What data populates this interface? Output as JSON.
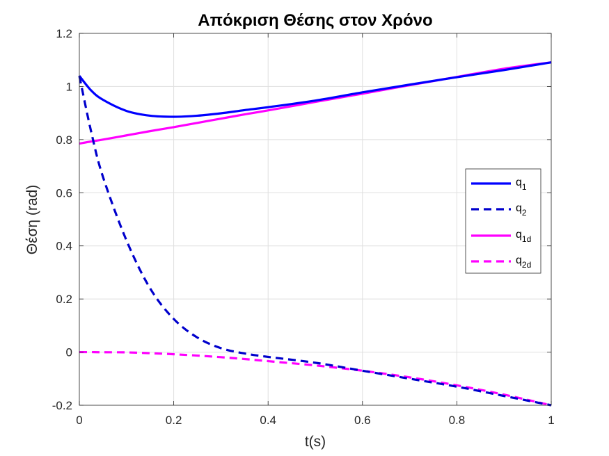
{
  "chart_data": {
    "type": "line",
    "title": "Απόκριση Θέσης στον Χρόνο",
    "xlabel": "t(s)",
    "ylabel": "Θέση (rad)",
    "xlim": [
      0,
      1
    ],
    "ylim": [
      -0.2,
      1.2
    ],
    "xticks": [
      "0",
      "0.2",
      "0.4",
      "0.6",
      "0.8",
      "1"
    ],
    "yticks": [
      "-0.2",
      "0",
      "0.2",
      "0.4",
      "0.6",
      "0.8",
      "1",
      "1.2"
    ],
    "grid": true,
    "legend_position": "right",
    "x": [
      0,
      0.025,
      0.05,
      0.1,
      0.15,
      0.2,
      0.25,
      0.3,
      0.35,
      0.4,
      0.5,
      0.6,
      0.7,
      0.8,
      0.9,
      1.0
    ],
    "series": [
      {
        "name": "q",
        "sub": "1",
        "color": "#0000ff",
        "dash": "solid",
        "values": [
          1.04,
          0.985,
          0.95,
          0.908,
          0.89,
          0.886,
          0.89,
          0.899,
          0.911,
          0.922,
          0.947,
          0.978,
          1.007,
          1.035,
          1.062,
          1.091
        ]
      },
      {
        "name": "q",
        "sub": "2",
        "color": "#0000cc",
        "dash": "dashed",
        "values": [
          1.04,
          0.83,
          0.66,
          0.42,
          0.24,
          0.125,
          0.055,
          0.015,
          -0.005,
          -0.018,
          -0.04,
          -0.07,
          -0.1,
          -0.13,
          -0.165,
          -0.2
        ]
      },
      {
        "name": "q",
        "sub": "1d",
        "color": "#ff00ff",
        "dash": "solid",
        "values": [
          0.785,
          0.793,
          0.8,
          0.816,
          0.832,
          0.847,
          0.863,
          0.879,
          0.895,
          0.91,
          0.942,
          0.973,
          1.005,
          1.036,
          1.067,
          1.091
        ]
      },
      {
        "name": "q",
        "sub": "2d",
        "color": "#ff00ff",
        "dash": "dashed",
        "values": [
          0.0,
          0.0,
          -0.0005,
          -0.001,
          -0.004,
          -0.008,
          -0.013,
          -0.019,
          -0.026,
          -0.034,
          -0.05,
          -0.07,
          -0.095,
          -0.125,
          -0.16,
          -0.2
        ]
      }
    ]
  }
}
